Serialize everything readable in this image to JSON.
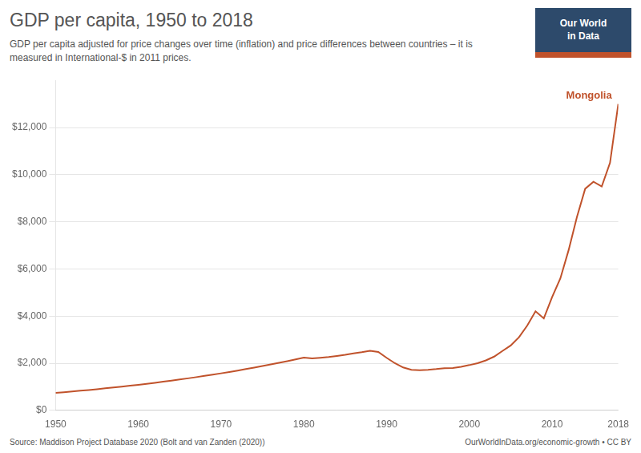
{
  "chart_data": {
    "type": "line",
    "title": "GDP per capita, 1950 to 2018",
    "subtitle": "GDP per capita adjusted for price changes over time (inflation) and price differences between countries – it is\nmeasured in International-$ in 2011 prices.",
    "sources": [
      "Source: Maddison Project Database 2020 (Bolt and van Zanden (2020))",
      "OurWorldInData.org/economic-growth • CC BY"
    ],
    "logo": "Our World\nin Data",
    "annotations": [
      {
        "text": "Mongolia"
      }
    ],
    "x": [
      1950,
      1951,
      1952,
      1953,
      1954,
      1955,
      1956,
      1957,
      1958,
      1959,
      1960,
      1961,
      1962,
      1963,
      1964,
      1965,
      1966,
      1967,
      1968,
      1969,
      1970,
      1971,
      1972,
      1973,
      1974,
      1975,
      1976,
      1977,
      1978,
      1979,
      1980,
      1981,
      1982,
      1983,
      1984,
      1985,
      1986,
      1987,
      1988,
      1989,
      1990,
      1991,
      1992,
      1993,
      1994,
      1995,
      1996,
      1997,
      1998,
      1999,
      2000,
      2001,
      2002,
      2003,
      2004,
      2005,
      2006,
      2007,
      2008,
      2009,
      2010,
      2011,
      2012,
      2013,
      2014,
      2015,
      2016,
      2017,
      2018
    ],
    "values": [
      742,
      770,
      800,
      832,
      864,
      898,
      933,
      969,
      1006,
      1045,
      1085,
      1127,
      1170,
      1215,
      1261,
      1309,
      1358,
      1409,
      1461,
      1515,
      1571,
      1629,
      1689,
      1750,
      1813,
      1879,
      1946,
      2015,
      2086,
      2159,
      2234,
      2200,
      2230,
      2260,
      2310,
      2360,
      2420,
      2470,
      2530,
      2480,
      2230,
      2000,
      1820,
      1720,
      1700,
      1720,
      1750,
      1790,
      1800,
      1850,
      1920,
      2000,
      2120,
      2280,
      2520,
      2750,
      3100,
      3600,
      4200,
      3900,
      4800,
      5600,
      6800,
      8200,
      9400,
      9700,
      9500,
      10500,
      13000
    ],
    "color": "#c0522b",
    "xlim": [
      1950,
      2018
    ],
    "xticks": [
      1950,
      1960,
      1970,
      1980,
      1990,
      2000,
      2010,
      2018
    ],
    "ylim": [
      0,
      14000
    ],
    "yticks": [
      {
        "value": 0,
        "label": "$0"
      },
      {
        "value": 2000,
        "label": "$2,000"
      },
      {
        "value": 4000,
        "label": "$4,000"
      },
      {
        "value": 6000,
        "label": "$6,000"
      },
      {
        "value": 8000,
        "label": "$8,000"
      },
      {
        "value": 10000,
        "label": "$10,000"
      },
      {
        "value": 12000,
        "label": "$12,000"
      }
    ],
    "grid": true
  }
}
